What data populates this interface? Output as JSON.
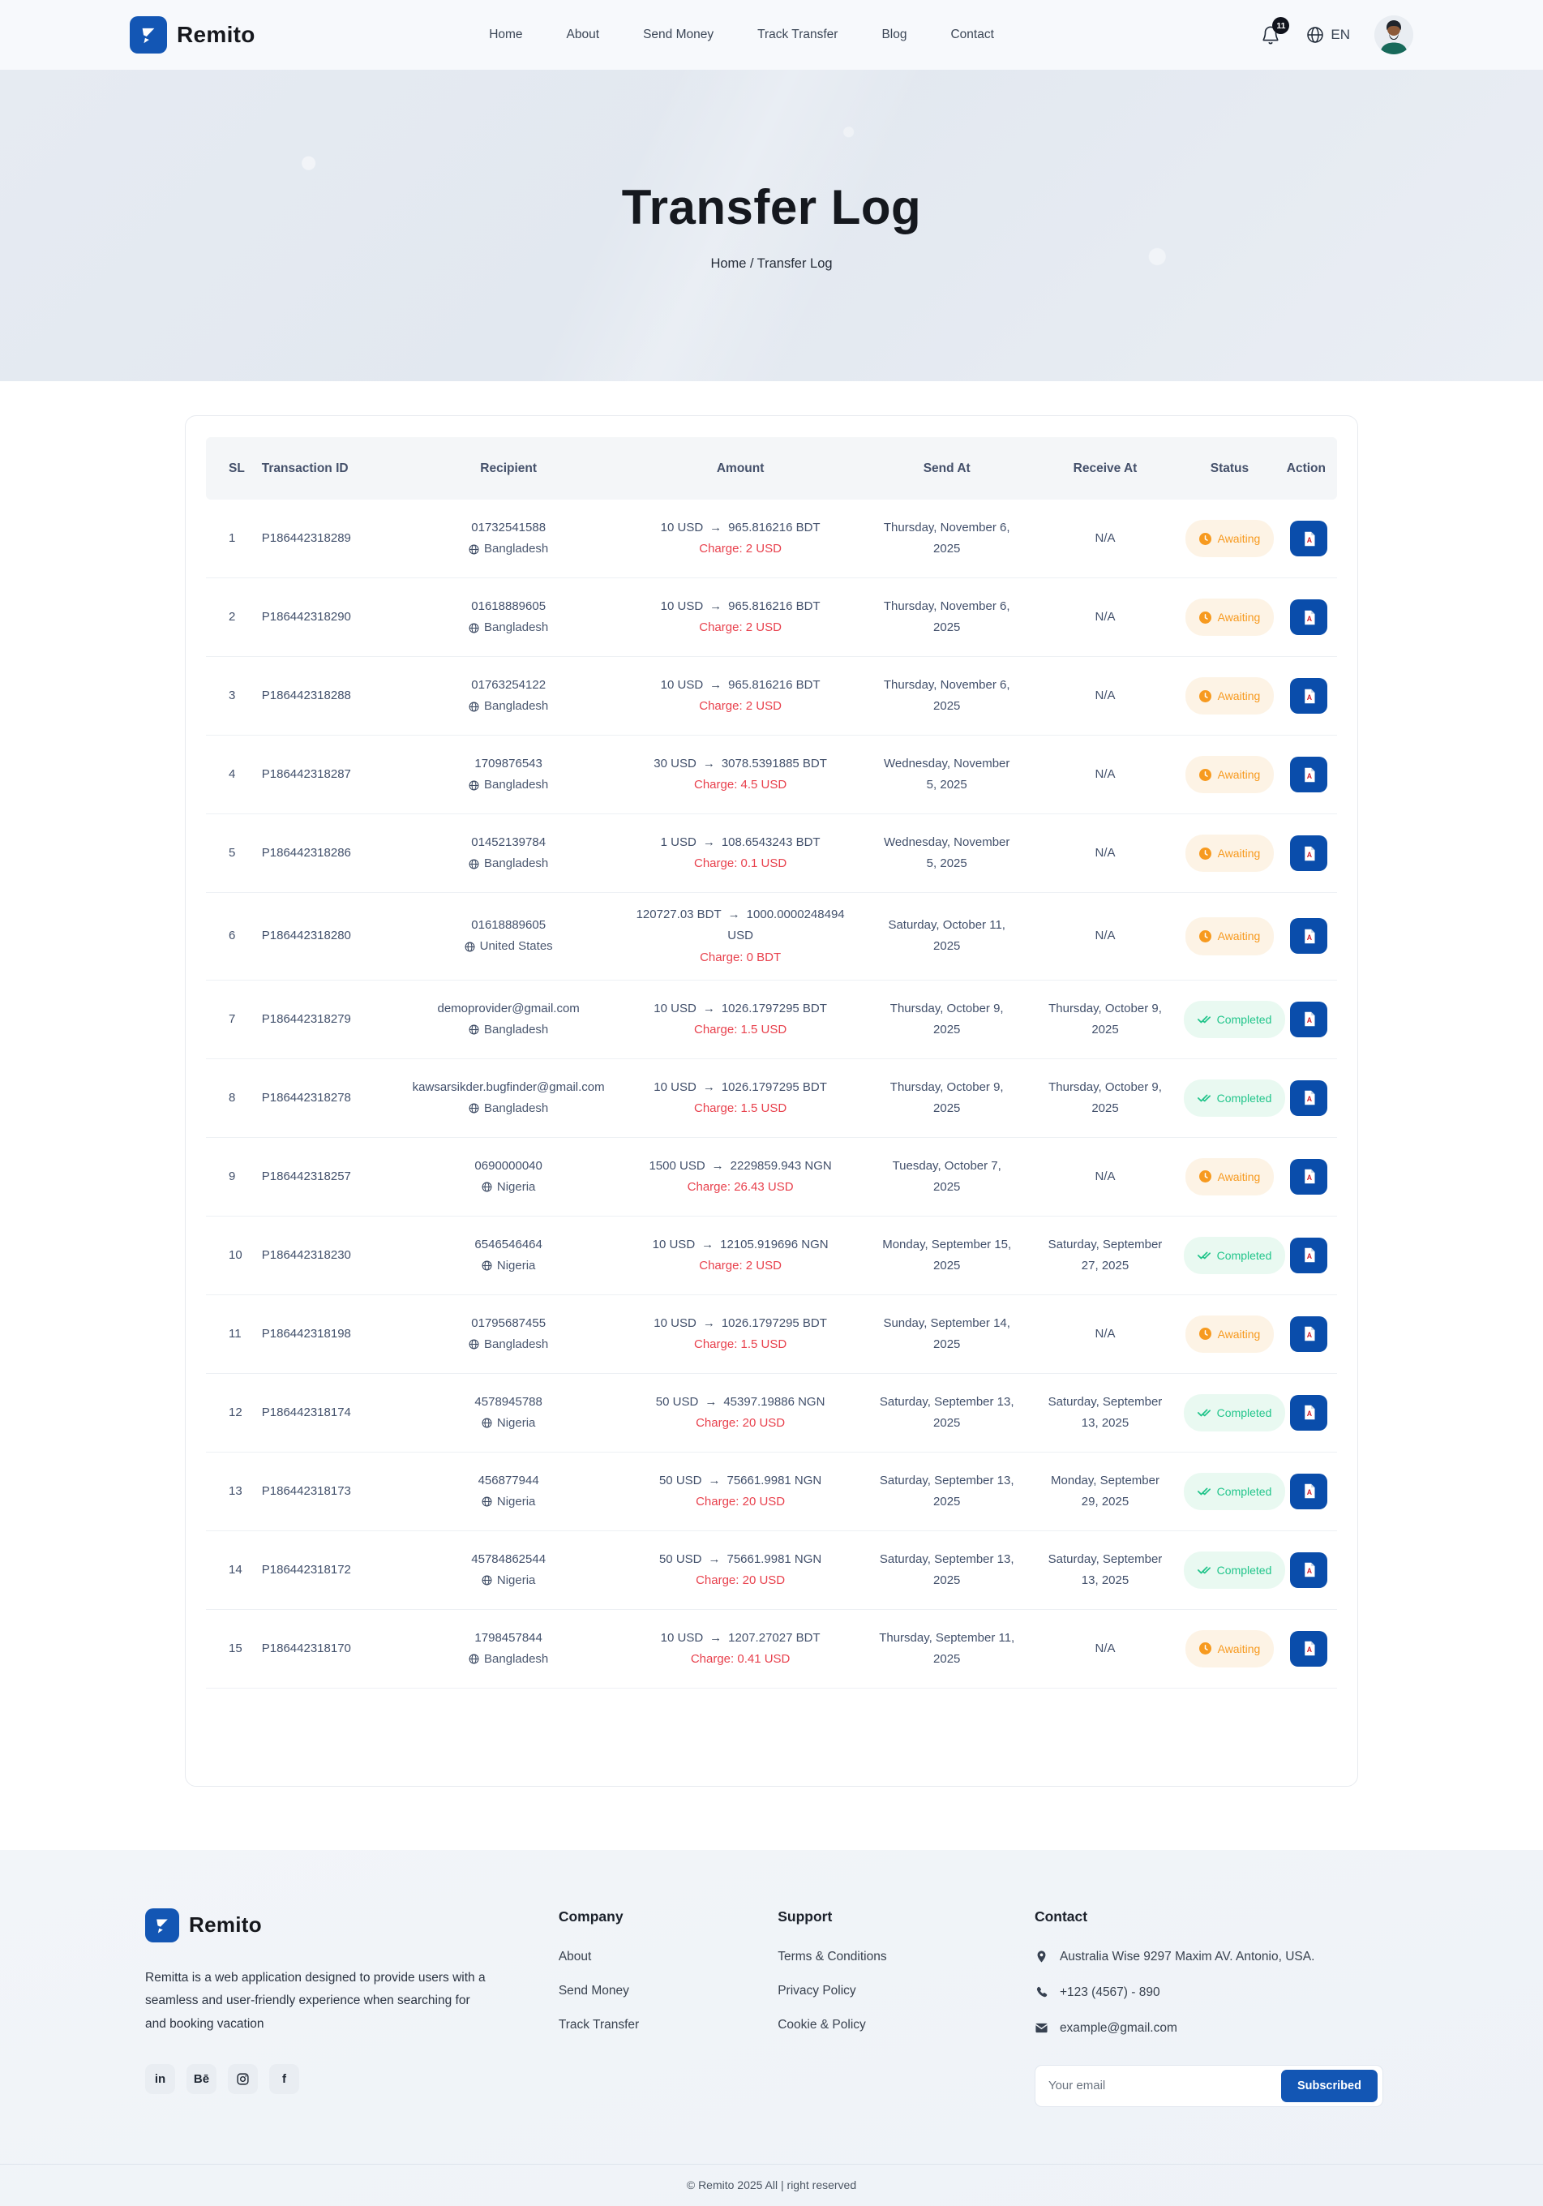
{
  "colors": {
    "primary_blue": "#1356b4",
    "action_blue": "#0a4dab",
    "charge_red": "#e8414d",
    "awaiting_orange": "#f79a1f",
    "awaiting_bg": "#fdf3e5",
    "completed_green": "#22c58b",
    "completed_bg": "#e9f9f1"
  },
  "brand": {
    "name": "Remito"
  },
  "nav": {
    "items": [
      "Home",
      "About",
      "Send Money",
      "Track Transfer",
      "Blog",
      "Contact"
    ],
    "notification_count": "11",
    "language": "EN"
  },
  "hero": {
    "title": "Transfer Log",
    "breadcrumb": {
      "home": "Home /",
      "current": "Transfer Log"
    }
  },
  "table": {
    "headers": [
      "SL",
      "Transaction ID",
      "Recipient",
      "Amount",
      "Send At",
      "Receive At",
      "Status",
      "Action"
    ],
    "rows": [
      {
        "sl": "1",
        "txid": "P186442318289",
        "recipient": "01732541588",
        "country": "Bangladesh",
        "amount_from": "10 USD",
        "amount_to": "965.816216 BDT",
        "charge": "Charge: 2 USD",
        "send_at": "Thursday, November 6, 2025",
        "receive_at": "N/A",
        "status": "Awaiting"
      },
      {
        "sl": "2",
        "txid": "P186442318290",
        "recipient": "01618889605",
        "country": "Bangladesh",
        "amount_from": "10 USD",
        "amount_to": "965.816216 BDT",
        "charge": "Charge: 2 USD",
        "send_at": "Thursday, November 6, 2025",
        "receive_at": "N/A",
        "status": "Awaiting"
      },
      {
        "sl": "3",
        "txid": "P186442318288",
        "recipient": "01763254122",
        "country": "Bangladesh",
        "amount_from": "10 USD",
        "amount_to": "965.816216 BDT",
        "charge": "Charge: 2 USD",
        "send_at": "Thursday, November 6, 2025",
        "receive_at": "N/A",
        "status": "Awaiting"
      },
      {
        "sl": "4",
        "txid": "P186442318287",
        "recipient": "1709876543",
        "country": "Bangladesh",
        "amount_from": "30 USD",
        "amount_to": "3078.5391885 BDT",
        "charge": "Charge: 4.5 USD",
        "send_at": "Wednesday, November 5, 2025",
        "receive_at": "N/A",
        "status": "Awaiting"
      },
      {
        "sl": "5",
        "txid": "P186442318286",
        "recipient": "01452139784",
        "country": "Bangladesh",
        "amount_from": "1 USD",
        "amount_to": "108.6543243 BDT",
        "charge": "Charge: 0.1 USD",
        "send_at": "Wednesday, November 5, 2025",
        "receive_at": "N/A",
        "status": "Awaiting"
      },
      {
        "sl": "6",
        "txid": "P186442318280",
        "recipient": "01618889605",
        "country": "United States",
        "amount_from": "120727.03 BDT",
        "amount_to": "1000.0000248494 USD",
        "charge": "Charge: 0 BDT",
        "send_at": "Saturday, October 11, 2025",
        "receive_at": "N/A",
        "status": "Awaiting"
      },
      {
        "sl": "7",
        "txid": "P186442318279",
        "recipient": "demoprovider@gmail.com",
        "country": "Bangladesh",
        "amount_from": "10 USD",
        "amount_to": "1026.1797295 BDT",
        "charge": "Charge: 1.5 USD",
        "send_at": "Thursday, October 9, 2025",
        "receive_at": "Thursday, October 9, 2025",
        "status": "Completed"
      },
      {
        "sl": "8",
        "txid": "P186442318278",
        "recipient": "kawsarsikder.bugfinder@gmail.com",
        "country": "Bangladesh",
        "amount_from": "10 USD",
        "amount_to": "1026.1797295 BDT",
        "charge": "Charge: 1.5 USD",
        "send_at": "Thursday, October 9, 2025",
        "receive_at": "Thursday, October 9, 2025",
        "status": "Completed"
      },
      {
        "sl": "9",
        "txid": "P186442318257",
        "recipient": "0690000040",
        "country": "Nigeria",
        "amount_from": "1500 USD",
        "amount_to": "2229859.943 NGN",
        "charge": "Charge: 26.43 USD",
        "send_at": "Tuesday, October 7, 2025",
        "receive_at": "N/A",
        "status": "Awaiting"
      },
      {
        "sl": "10",
        "txid": "P186442318230",
        "recipient": "6546546464",
        "country": "Nigeria",
        "amount_from": "10 USD",
        "amount_to": "12105.919696 NGN",
        "charge": "Charge: 2 USD",
        "send_at": "Monday, September 15, 2025",
        "receive_at": "Saturday, September 27, 2025",
        "status": "Completed"
      },
      {
        "sl": "11",
        "txid": "P186442318198",
        "recipient": "01795687455",
        "country": "Bangladesh",
        "amount_from": "10 USD",
        "amount_to": "1026.1797295 BDT",
        "charge": "Charge: 1.5 USD",
        "send_at": "Sunday, September 14, 2025",
        "receive_at": "N/A",
        "status": "Awaiting"
      },
      {
        "sl": "12",
        "txid": "P186442318174",
        "recipient": "4578945788",
        "country": "Nigeria",
        "amount_from": "50 USD",
        "amount_to": "45397.19886 NGN",
        "charge": "Charge: 20 USD",
        "send_at": "Saturday, September 13, 2025",
        "receive_at": "Saturday, September 13, 2025",
        "status": "Completed"
      },
      {
        "sl": "13",
        "txid": "P186442318173",
        "recipient": "456877944",
        "country": "Nigeria",
        "amount_from": "50 USD",
        "amount_to": "75661.9981 NGN",
        "charge": "Charge: 20 USD",
        "send_at": "Saturday, September 13, 2025",
        "receive_at": "Monday, September 29, 2025",
        "status": "Completed"
      },
      {
        "sl": "14",
        "txid": "P186442318172",
        "recipient": "45784862544",
        "country": "Nigeria",
        "amount_from": "50 USD",
        "amount_to": "75661.9981 NGN",
        "charge": "Charge: 20 USD",
        "send_at": "Saturday, September 13, 2025",
        "receive_at": "Saturday, September 13, 2025",
        "status": "Completed"
      },
      {
        "sl": "15",
        "txid": "P186442318170",
        "recipient": "1798457844",
        "country": "Bangladesh",
        "amount_from": "10 USD",
        "amount_to": "1207.27027 BDT",
        "charge": "Charge: 0.41 USD",
        "send_at": "Thursday, September 11, 2025",
        "receive_at": "N/A",
        "status": "Awaiting"
      }
    ]
  },
  "footer": {
    "description": "Remitta is a web application designed to provide users with a seamless and user-friendly experience when searching for and booking vacation",
    "socials": [
      "LinkedIn",
      "Behance",
      "Instagram",
      "Facebook"
    ],
    "company": {
      "title": "Company",
      "links": [
        "About",
        "Send Money",
        "Track Transfer"
      ]
    },
    "support": {
      "title": "Support",
      "links": [
        "Terms & Conditions",
        "Privacy Policy",
        "Cookie & Policy"
      ]
    },
    "contact": {
      "title": "Contact",
      "address": "Australia Wise 9297 Maxim AV. Antonio, USA.",
      "phone": "+123 (4567) - 890",
      "email": "example@gmail.com",
      "newsletter_placeholder": "Your email",
      "subscribe_label": "Subscribed"
    },
    "copyright": "© Remito 2025 All | right reserved"
  }
}
